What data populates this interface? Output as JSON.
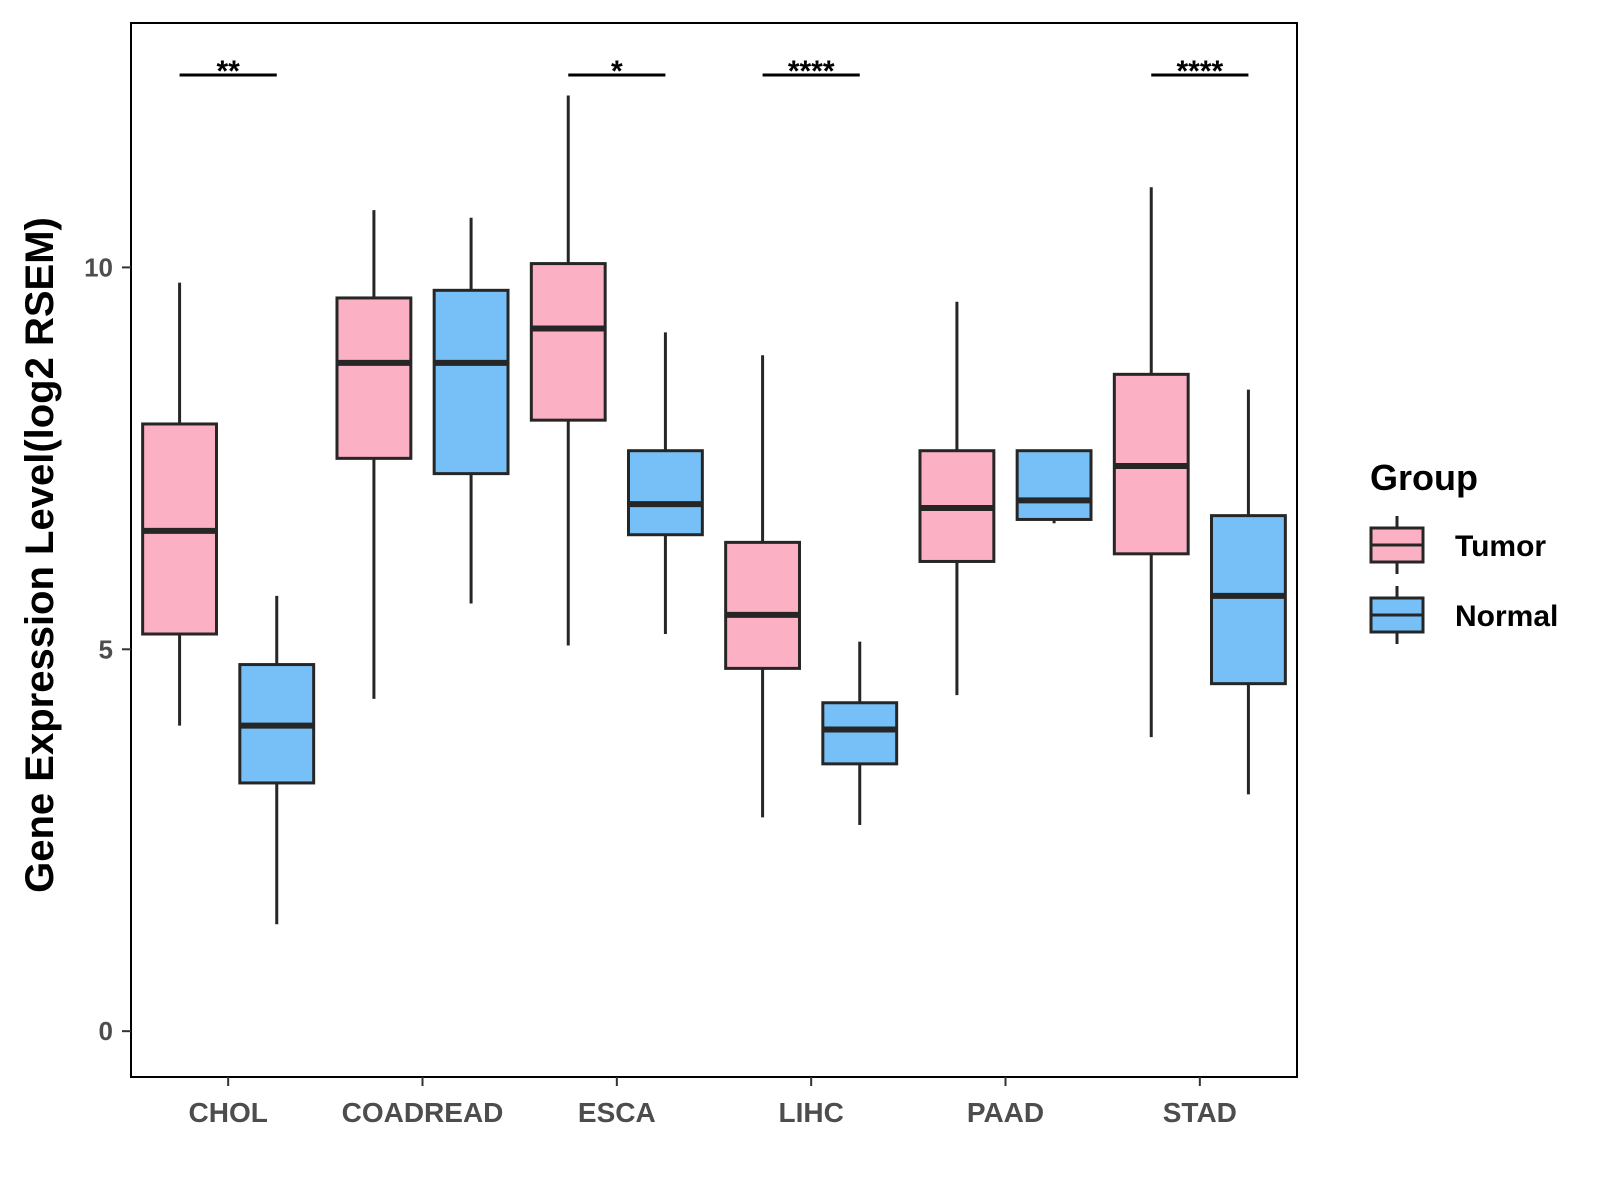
{
  "chart_data": {
    "type": "boxplot",
    "title": "",
    "xlabel": "",
    "ylabel": "Gene Expression Level(log2 RSEM)",
    "ylim": [
      -0.6,
      13.2
    ],
    "yticks": [
      0,
      5,
      10
    ],
    "grid": false,
    "categories": [
      "CHOL",
      "COADREAD",
      "ESCA",
      "LIHC",
      "PAAD",
      "STAD"
    ],
    "legend": {
      "title": "Group",
      "position": "right",
      "entries": [
        {
          "name": "Tumor",
          "color": "#FBB1C3"
        },
        {
          "name": "Normal",
          "color": "#77C0F7"
        }
      ]
    },
    "series": [
      {
        "name": "Tumor",
        "color": "#FBB1C3",
        "boxes": [
          {
            "category": "CHOL",
            "whisker_low": 4.0,
            "q1": 5.2,
            "median": 6.55,
            "q3": 7.95,
            "whisker_high": 9.8
          },
          {
            "category": "COADREAD",
            "whisker_low": 4.35,
            "q1": 7.5,
            "median": 8.75,
            "q3": 9.6,
            "whisker_high": 10.75
          },
          {
            "category": "ESCA",
            "whisker_low": 5.05,
            "q1": 8.0,
            "median": 9.2,
            "q3": 10.05,
            "whisker_high": 12.25
          },
          {
            "category": "LIHC",
            "whisker_low": 2.8,
            "q1": 4.75,
            "median": 5.45,
            "q3": 6.4,
            "whisker_high": 8.85
          },
          {
            "category": "PAAD",
            "whisker_low": 4.4,
            "q1": 6.15,
            "median": 6.85,
            "q3": 7.6,
            "whisker_high": 9.55
          },
          {
            "category": "STAD",
            "whisker_low": 3.85,
            "q1": 6.25,
            "median": 7.4,
            "q3": 8.6,
            "whisker_high": 11.05
          }
        ]
      },
      {
        "name": "Normal",
        "color": "#77C0F7",
        "boxes": [
          {
            "category": "CHOL",
            "whisker_low": 1.4,
            "q1": 3.25,
            "median": 4.0,
            "q3": 4.8,
            "whisker_high": 5.7
          },
          {
            "category": "COADREAD",
            "whisker_low": 5.6,
            "q1": 7.3,
            "median": 8.75,
            "q3": 9.7,
            "whisker_high": 10.65
          },
          {
            "category": "ESCA",
            "whisker_low": 5.2,
            "q1": 6.5,
            "median": 6.9,
            "q3": 7.6,
            "whisker_high": 9.15
          },
          {
            "category": "LIHC",
            "whisker_low": 2.7,
            "q1": 3.5,
            "median": 3.95,
            "q3": 4.3,
            "whisker_high": 5.1
          },
          {
            "category": "PAAD",
            "whisker_low": 6.65,
            "q1": 6.7,
            "median": 6.95,
            "q3": 7.6,
            "whisker_high": 7.6
          },
          {
            "category": "STAD",
            "whisker_low": 3.1,
            "q1": 4.55,
            "median": 5.7,
            "q3": 6.75,
            "whisker_high": 8.4
          }
        ]
      }
    ],
    "significance": [
      {
        "category": "CHOL",
        "label": "**"
      },
      {
        "category": "ESCA",
        "label": "*"
      },
      {
        "category": "LIHC",
        "label": "****"
      },
      {
        "category": "STAD",
        "label": "****"
      }
    ]
  }
}
